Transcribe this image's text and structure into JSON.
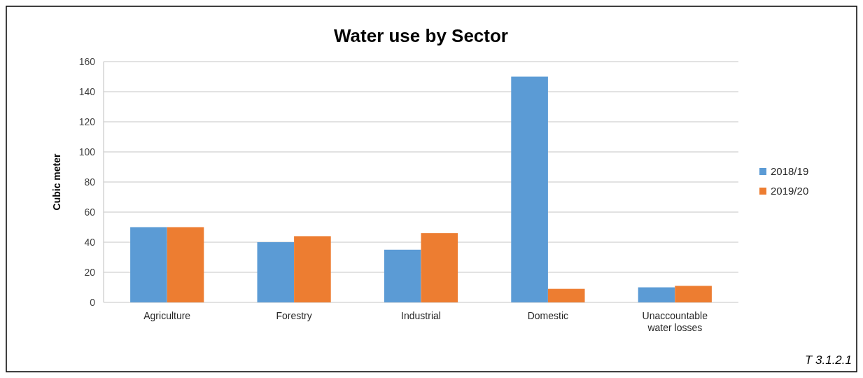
{
  "chart_data": {
    "type": "bar",
    "title": "Water use by Sector",
    "ylabel": "Cubic meter",
    "categories": [
      "Agriculture",
      "Forestry",
      "Industrial",
      "Domestic",
      "Unaccountable water losses"
    ],
    "series": [
      {
        "name": "2018/19",
        "color": "#5b9bd5",
        "values": [
          50,
          40,
          35,
          150,
          10
        ]
      },
      {
        "name": "2019/20",
        "color": "#ed7d31",
        "values": [
          50,
          44,
          46,
          9,
          11
        ]
      }
    ],
    "ylim": [
      0,
      160
    ],
    "yticks": [
      0,
      20,
      40,
      60,
      80,
      100,
      120,
      140,
      160
    ],
    "grid": "y",
    "legend": "right",
    "annotations": [
      "T 3.1.2.1"
    ]
  }
}
